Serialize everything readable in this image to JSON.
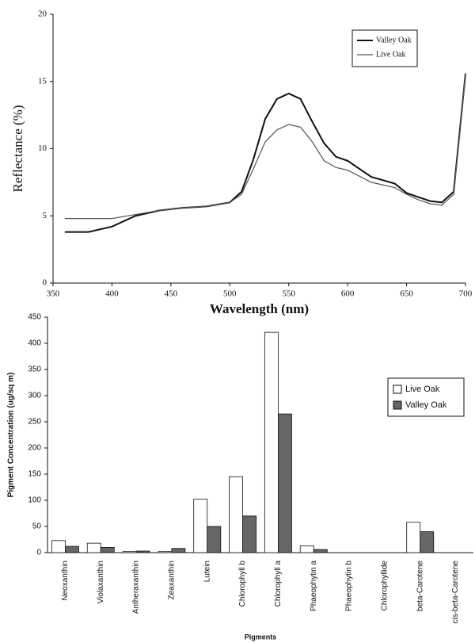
{
  "chart_data": [
    {
      "type": "line",
      "x_label": "Wavelength (nm)",
      "y_label": "Reflectance (%)",
      "x": [
        360,
        380,
        400,
        420,
        440,
        460,
        480,
        500,
        510,
        520,
        530,
        540,
        550,
        560,
        570,
        580,
        590,
        600,
        620,
        640,
        650,
        660,
        670,
        680,
        690,
        700
      ],
      "series": [
        {
          "name": "Valley Oak",
          "color": "#111111",
          "values": [
            3.8,
            3.8,
            4.2,
            5.0,
            5.4,
            5.6,
            5.7,
            6.0,
            6.8,
            9.2,
            12.2,
            13.7,
            14.1,
            13.7,
            12.0,
            10.4,
            9.4,
            9.1,
            7.9,
            7.4,
            6.7,
            6.4,
            6.1,
            6.0,
            6.8,
            15.6
          ]
        },
        {
          "name": "Live Oak",
          "color": "#555555",
          "values": [
            4.8,
            4.8,
            4.8,
            5.1,
            5.4,
            5.6,
            5.7,
            6.0,
            6.6,
            8.5,
            10.5,
            11.4,
            11.8,
            11.6,
            10.5,
            9.1,
            8.6,
            8.4,
            7.5,
            7.1,
            6.6,
            6.2,
            5.9,
            5.8,
            6.6,
            15.6
          ]
        }
      ],
      "xlim": [
        350,
        700
      ],
      "xticks": [
        350,
        400,
        450,
        500,
        550,
        600,
        650,
        700
      ],
      "ylim": [
        0,
        20
      ],
      "yticks": [
        0,
        5,
        10,
        15,
        20
      ],
      "legend": "upper right"
    },
    {
      "type": "bar",
      "x_label": "Pigments",
      "y_label": "Pigment Concentration (ug/sq m)",
      "categories": [
        "Neoxanthin",
        "Violaxanthin",
        "Antheraxanthin",
        "Zeaxanthin",
        "Lutein",
        "Chlorophyll b",
        "Chlorophyll a",
        "Phaeophytin a",
        "Phaeophytin b",
        "Chlorophyllide",
        "beta-Carotene",
        "cis-beta-Carotene"
      ],
      "series": [
        {
          "name": "Live Oak",
          "color": "#ffffff",
          "values": [
            23,
            18,
            2,
            2,
            102,
            145,
            421,
            13,
            0,
            0,
            58,
            0
          ]
        },
        {
          "name": "Valley Oak",
          "color": "#666666",
          "values": [
            12,
            10,
            3,
            8,
            50,
            70,
            265,
            6,
            0,
            0,
            40,
            0
          ]
        }
      ],
      "ylim": [
        0,
        450
      ],
      "yticks": [
        0,
        50,
        100,
        150,
        200,
        250,
        300,
        350,
        400,
        450
      ],
      "legend": "upper right"
    }
  ]
}
